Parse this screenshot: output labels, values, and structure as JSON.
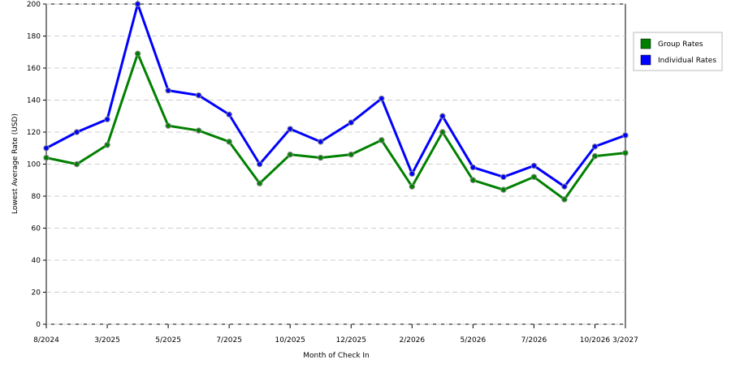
{
  "chart_data": {
    "type": "line",
    "x_label": "Month of Check In",
    "y_label": "Lowest Average Rate (USD)",
    "categories": [
      "8/2024",
      null,
      "3/2025",
      null,
      "5/2025",
      null,
      "7/2025",
      null,
      "10/2025",
      null,
      "12/2025",
      null,
      "2/2026",
      null,
      "5/2026",
      null,
      "7/2026",
      null,
      "10/2026",
      "3/2027"
    ],
    "series": [
      {
        "name": "Group Rates",
        "color": "#008000",
        "values": [
          104,
          100,
          112,
          169,
          124,
          121,
          114,
          88,
          106,
          104,
          106,
          115,
          86,
          120,
          90,
          84,
          92,
          78,
          105,
          107
        ]
      },
      {
        "name": "Individual Rates",
        "color": "#0000ff",
        "values": [
          110,
          120,
          128,
          200,
          146,
          143,
          131,
          100,
          122,
          114,
          126,
          141,
          94,
          130,
          98,
          92,
          99,
          86,
          111,
          118
        ]
      }
    ],
    "ylim": [
      0,
      200
    ],
    "yticks": [
      0,
      20,
      40,
      60,
      80,
      100,
      120,
      140,
      160,
      180,
      200
    ],
    "grid": true,
    "legend": "right"
  }
}
